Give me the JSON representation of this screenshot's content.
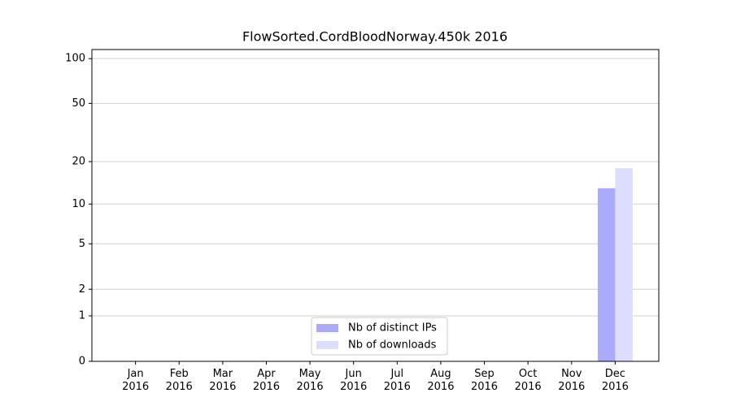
{
  "chart_data": {
    "type": "bar",
    "title": "FlowSorted.CordBloodNorway.450k 2016",
    "categories": [
      "Jan 2016",
      "Feb 2016",
      "Mar 2016",
      "Apr 2016",
      "May 2016",
      "Jun 2016",
      "Jul 2016",
      "Aug 2016",
      "Sep 2016",
      "Oct 2016",
      "Nov 2016",
      "Dec 2016"
    ],
    "series": [
      {
        "name": "Nb of distinct IPs",
        "color": "#aaaaff",
        "values": [
          0,
          0,
          0,
          0,
          0,
          0,
          0,
          0,
          0,
          0,
          0,
          13
        ]
      },
      {
        "name": "Nb of downloads",
        "color": "#ddddff",
        "values": [
          0,
          0,
          0,
          0,
          0,
          0,
          0,
          0,
          0,
          0,
          0,
          18
        ]
      }
    ],
    "yscale": "log1p",
    "ylim": [
      0,
      115
    ],
    "yticks": [
      0,
      1,
      2,
      5,
      10,
      20,
      50,
      100
    ],
    "grid": true,
    "legend": "lower center"
  }
}
